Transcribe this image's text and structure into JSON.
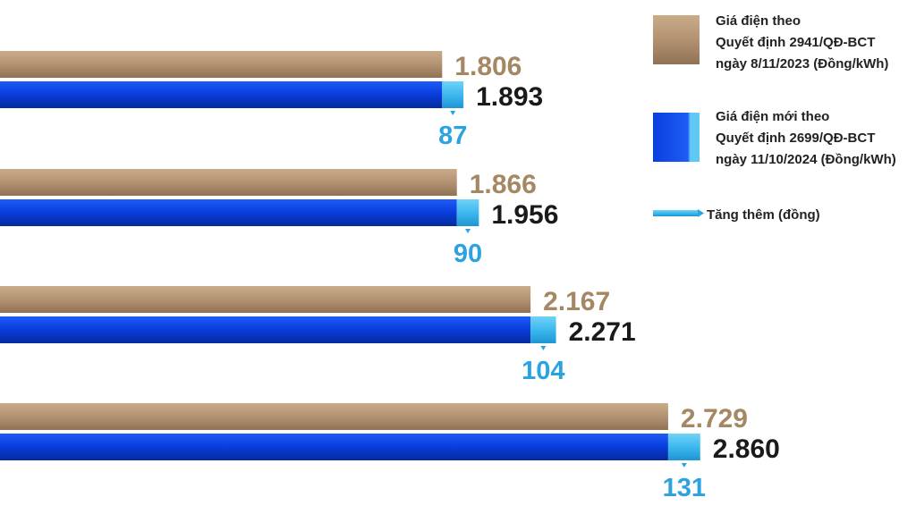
{
  "chart_data": {
    "type": "bar",
    "orientation": "horizontal",
    "grid": false,
    "legend_position": "top-right",
    "series": [
      {
        "name_lines": [
          "Giá điện theo",
          "Quyết định 2941/QĐ-BCT",
          "ngày 8/11/2023 (Đồng/kWh)"
        ],
        "color": "#b39272",
        "values": [
          1806,
          1866,
          2167,
          2729
        ],
        "labels": [
          "1.806",
          "1.866",
          "2.167",
          "2.729"
        ]
      },
      {
        "name_lines": [
          "Giá điện mới theo",
          "Quyết định 2699/QĐ-BCT",
          "ngày 11/10/2024 (Đồng/kWh)"
        ],
        "color": "#0a3fe0",
        "values": [
          1893,
          1956,
          2271,
          2860
        ],
        "labels": [
          "1.893",
          "1.956",
          "2.271",
          "2.860"
        ]
      },
      {
        "name": "Tăng thêm (đồng)",
        "color": "#3db8ee",
        "values": [
          87,
          90,
          104,
          131
        ],
        "labels": [
          "87",
          "90",
          "104",
          "131"
        ]
      }
    ],
    "colors": {
      "old_label": "#a58763",
      "new_label": "#1a1a1a",
      "inc_label": "#2ba3e0"
    }
  }
}
